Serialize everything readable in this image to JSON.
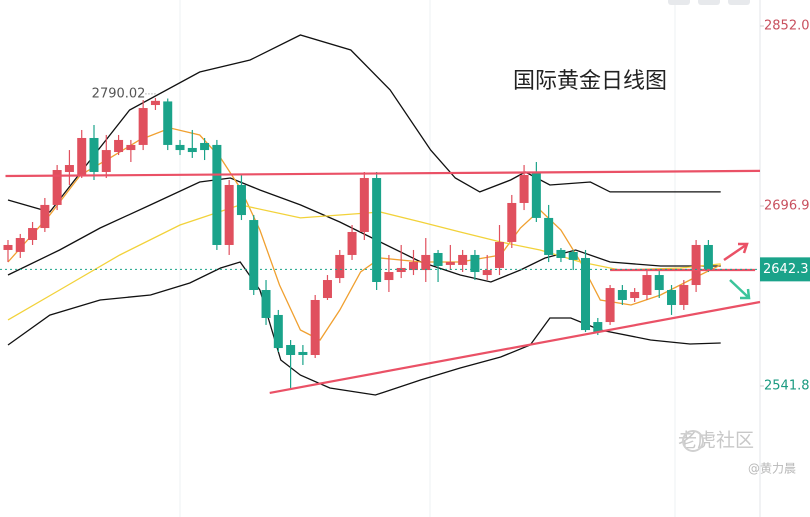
{
  "chart_data": {
    "type": "candlestick",
    "title": "国际黄金日线图",
    "watermark": "老虎社区",
    "author": "@黄力晨",
    "up_color": "#e0505e",
    "down_color": "#1aa38a",
    "xlim": [
      -0.65,
      61.2
    ],
    "ylim": [
      2428.9,
      2874.4
    ],
    "yticks": [
      2541.8,
      2696.9,
      {
        "value": 2852,
        "label": "2852.0"
      }
    ],
    "candles": {
      "open": [
        2659.0,
        2657.3,
        2667.6,
        2677.9,
        2697.8,
        2726.2,
        2723.6,
        2755.5,
        2726.2,
        2743.4,
        2745.1,
        2749.5,
        2783.9,
        2787.0,
        2749.5,
        2746.9,
        2751.2,
        2749.5,
        2663.3,
        2715.0,
        2684.8,
        2624.5,
        2603.0,
        2577.1,
        2571.1,
        2568.5,
        2617.6,
        2634.8,
        2654.7,
        2674.5,
        2721.0,
        2633.1,
        2640.0,
        2641.7,
        2641.7,
        2656.4,
        2646.1,
        2646.1,
        2654.7,
        2637.4,
        2643.5,
        2665.9,
        2699.5,
        2726.2,
        2686.6,
        2659.0,
        2657.3,
        2652.1,
        2596.9,
        2596.9,
        2624.5,
        2617.6,
        2620.2,
        2637.4,
        2624.5,
        2611.6,
        2628.8,
        2663.3
      ],
      "high": [
        2667.6,
        2672.8,
        2683.1,
        2703.8,
        2732.2,
        2745.1,
        2762.4,
        2766.7,
        2758.1,
        2758.1,
        2753.8,
        2788.2,
        2790.02,
        2789.5,
        2753.8,
        2762.4,
        2755.5,
        2753.8,
        2719.3,
        2723.6,
        2689.1,
        2633.1,
        2607.3,
        2581.4,
        2577.1,
        2620.2,
        2637.4,
        2659.0,
        2680.5,
        2726.2,
        2726.2,
        2654.7,
        2663.3,
        2659.0,
        2669.3,
        2659.0,
        2663.3,
        2659.0,
        2659.0,
        2654.7,
        2680.5,
        2706.4,
        2732.2,
        2734.8,
        2697.8,
        2660.7,
        2659.0,
        2659.0,
        2600.4,
        2628.8,
        2628.8,
        2626.2,
        2641.7,
        2641.7,
        2628.8,
        2633.1,
        2667.6,
        2667.6
      ],
      "low": [
        2648.6,
        2652.1,
        2663.3,
        2674.5,
        2693.4,
        2715.0,
        2721.0,
        2719.3,
        2721.0,
        2740.8,
        2734.8,
        2745.1,
        2779.6,
        2745.1,
        2740.8,
        2738.3,
        2736.5,
        2659.0,
        2654.7,
        2684.8,
        2620.2,
        2594.4,
        2571.1,
        2540.1,
        2559.9,
        2565.9,
        2615.9,
        2630.5,
        2650.4,
        2667.6,
        2624.5,
        2622.8,
        2634.8,
        2637.4,
        2631.4,
        2631.4,
        2641.7,
        2640.0,
        2633.1,
        2633.1,
        2637.4,
        2660.7,
        2693.4,
        2683.1,
        2648.6,
        2648.6,
        2641.7,
        2588.3,
        2585.7,
        2594.4,
        2611.6,
        2614.2,
        2615.9,
        2617.6,
        2603.0,
        2607.3,
        2622.8,
        2640.0
      ],
      "close": [
        2663.3,
        2669.3,
        2677.9,
        2697.8,
        2727.9,
        2732.2,
        2755.5,
        2726.2,
        2745.1,
        2753.8,
        2749.5,
        2781.3,
        2787.5,
        2749.5,
        2745.1,
        2743.4,
        2745.1,
        2663.3,
        2715.0,
        2689.1,
        2624.5,
        2600.4,
        2574.5,
        2568.5,
        2568.5,
        2615.9,
        2633.1,
        2654.7,
        2674.5,
        2721.0,
        2631.4,
        2640.0,
        2643.5,
        2648.6,
        2654.7,
        2645.2,
        2648.6,
        2654.7,
        2640.0,
        2641.7,
        2665.9,
        2699.5,
        2723.6,
        2686.6,
        2654.7,
        2652.1,
        2650.4,
        2590.0,
        2588.3,
        2626.2,
        2615.9,
        2622.8,
        2637.4,
        2624.5,
        2611.6,
        2628.8,
        2663.3,
        2642.3
      ]
    },
    "lines": [
      {
        "color": "#111111",
        "x": [
          0,
          3.4,
          6.7,
          9.9,
          15.6,
          19.7,
          23.8,
          27.9,
          31.1,
          34.4,
          36.4,
          38.4,
          40.9,
          42.1,
          44.1,
          47.4,
          49,
          58
        ],
        "values": [
          2702.1,
          2691.7,
          2736.5,
          2779.6,
          2812.4,
          2822.7,
          2844.2,
          2831.3,
          2796.9,
          2745.1,
          2721.0,
          2709.0,
          2719.3,
          2726.2,
          2715.0,
          2717.6,
          2709.0,
          2709.0
        ]
      },
      {
        "color": "#111111",
        "x": [
          0,
          4.2,
          7.5,
          11.6,
          15.6,
          18.1,
          20.5,
          23.8,
          27.0,
          30.3,
          33.6,
          36.8,
          39.3,
          41.7,
          43.7,
          46.2,
          49.0,
          53.1,
          58.0
        ],
        "values": [
          2637.4,
          2659.0,
          2677.9,
          2697.8,
          2717.6,
          2721.0,
          2710.7,
          2697.8,
          2683.1,
          2665.9,
          2648.6,
          2637.4,
          2631.4,
          2641.7,
          2652.1,
          2659.0,
          2648.6,
          2645.2,
          2645.2
        ]
      },
      {
        "color": "#111111",
        "x": [
          0,
          3.4,
          7.5,
          11.6,
          14.8,
          17.3,
          18.9,
          20.5,
          22.2,
          23.8,
          26.2,
          29.9,
          33.6,
          36.8,
          40.1,
          42.5,
          44.1,
          45.8,
          48.2,
          52.3,
          55.5,
          58.0
        ],
        "values": [
          2577.1,
          2602.9,
          2615.9,
          2620.2,
          2630.5,
          2643.5,
          2648.6,
          2624.5,
          2564.2,
          2551.2,
          2540.1,
          2534.0,
          2547.0,
          2557.3,
          2566.8,
          2577.1,
          2600.4,
          2600.4,
          2590.0,
          2581.4,
          2578.0,
          2578.8
        ]
      },
      {
        "color": "#f0a030",
        "x": [
          0,
          3.4,
          5.9,
          8.3,
          10.7,
          13.2,
          15.6,
          17.3,
          18.9,
          20.5,
          22.1,
          23.8,
          25.4,
          27.0,
          28.7,
          30.3,
          33.6,
          36.8,
          40.1,
          41.7,
          43.3,
          45.0,
          46.6,
          48.2,
          50.7,
          53.1,
          55.5,
          58.0
        ],
        "values": [
          2648.6,
          2689.1,
          2723.6,
          2738.3,
          2753.8,
          2764.1,
          2758.1,
          2738.3,
          2712.4,
          2676.2,
          2628.8,
          2590.0,
          2581.4,
          2607.3,
          2640.0,
          2652.1,
          2648.6,
          2648.6,
          2654.7,
          2677.9,
          2693.4,
          2676.2,
          2648.6,
          2615.9,
          2611.6,
          2620.2,
          2633.1,
          2646.1
        ]
      },
      {
        "color": "#f2d23a",
        "x": [
          0,
          4.2,
          9.1,
          14.0,
          18.9,
          23.8,
          27.0,
          30.3,
          33.6,
          36.8,
          40.1,
          43.3,
          46.6,
          49.8,
          54.7,
          58.0
        ],
        "values": [
          2598.7,
          2624.5,
          2654.7,
          2680.5,
          2697.8,
          2686.6,
          2689.1,
          2691.7,
          2683.1,
          2674.5,
          2665.9,
          2659.0,
          2648.6,
          2641.7,
          2643.5,
          2647.0
        ]
      }
    ],
    "trendlines": [
      {
        "color": "#ea5166",
        "x": [
          -0.2,
          61.2
        ],
        "values": [
          2722.7,
          2727.1
        ]
      },
      {
        "color": "#ea5166",
        "x": [
          21.3,
          61.2
        ],
        "values": [
          2535.8,
          2614.2
        ]
      },
      {
        "color": "#ea5166",
        "x": [
          49.0,
          60.8
        ],
        "values": [
          2641.7,
          2641.7
        ]
      }
    ]
  }
}
